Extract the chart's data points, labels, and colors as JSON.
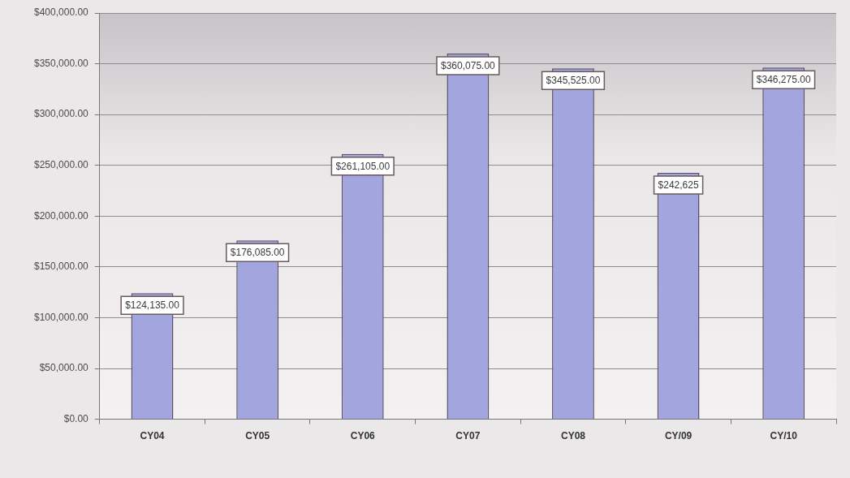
{
  "chart_data": {
    "type": "bar",
    "categories": [
      "CY04",
      "CY05",
      "CY06",
      "CY07",
      "CY08",
      "CY/09",
      "CY/10"
    ],
    "values": [
      124135,
      176085,
      261105,
      360075,
      345525,
      242625,
      346275
    ],
    "value_labels": [
      "$124,135.00",
      "$176,085.00",
      "$261,105.00",
      "$360,075.00",
      "$345,525.00",
      "$242,625",
      "$346,275.00"
    ],
    "color": "#a3a6de",
    "ylim": [
      0,
      400000
    ],
    "yticks": [
      {
        "value": 0,
        "label": "$0.00"
      },
      {
        "value": 50000,
        "label": "$50,000.00"
      },
      {
        "value": 100000,
        "label": "$100,000.00"
      },
      {
        "value": 150000,
        "label": "$150,000.00"
      },
      {
        "value": 200000,
        "label": "$200,000.00"
      },
      {
        "value": 250000,
        "label": "$250,000.00"
      },
      {
        "value": 300000,
        "label": "$300,000.00"
      },
      {
        "value": 350000,
        "label": "$350,000.00"
      },
      {
        "value": 400000,
        "label": "$400,000.00"
      }
    ],
    "grid": "y"
  }
}
